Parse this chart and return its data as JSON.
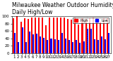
{
  "title": "Milwaukee Weather Outdoor Humidity",
  "subtitle": "Daily High/Low",
  "days": [
    1,
    2,
    3,
    4,
    5,
    6,
    7,
    8,
    9,
    10,
    11,
    12,
    13,
    14,
    15,
    16,
    17,
    18,
    19,
    20,
    21,
    22,
    23,
    24,
    25,
    26,
    27
  ],
  "highs": [
    95,
    99,
    85,
    95,
    93,
    97,
    96,
    96,
    97,
    75,
    96,
    97,
    97,
    97,
    97,
    93,
    91,
    96,
    78,
    95,
    93,
    95,
    97,
    95,
    85,
    95,
    94
  ],
  "lows": [
    55,
    30,
    70,
    30,
    58,
    50,
    52,
    45,
    42,
    35,
    40,
    38,
    36,
    55,
    40,
    35,
    30,
    35,
    28,
    32,
    65,
    65,
    38,
    35,
    45,
    38,
    55
  ],
  "high_color": "#ff0000",
  "low_color": "#0000ff",
  "bg_color": "#ffffff",
  "ylim": [
    0,
    100
  ],
  "ylabel_ticks": [
    0,
    20,
    40,
    60,
    80,
    100
  ],
  "bar_width": 0.4,
  "title_fontsize": 5.5,
  "tick_fontsize": 4.0,
  "legend_high": "High",
  "legend_low": "Low",
  "dashed_line_day": 21
}
